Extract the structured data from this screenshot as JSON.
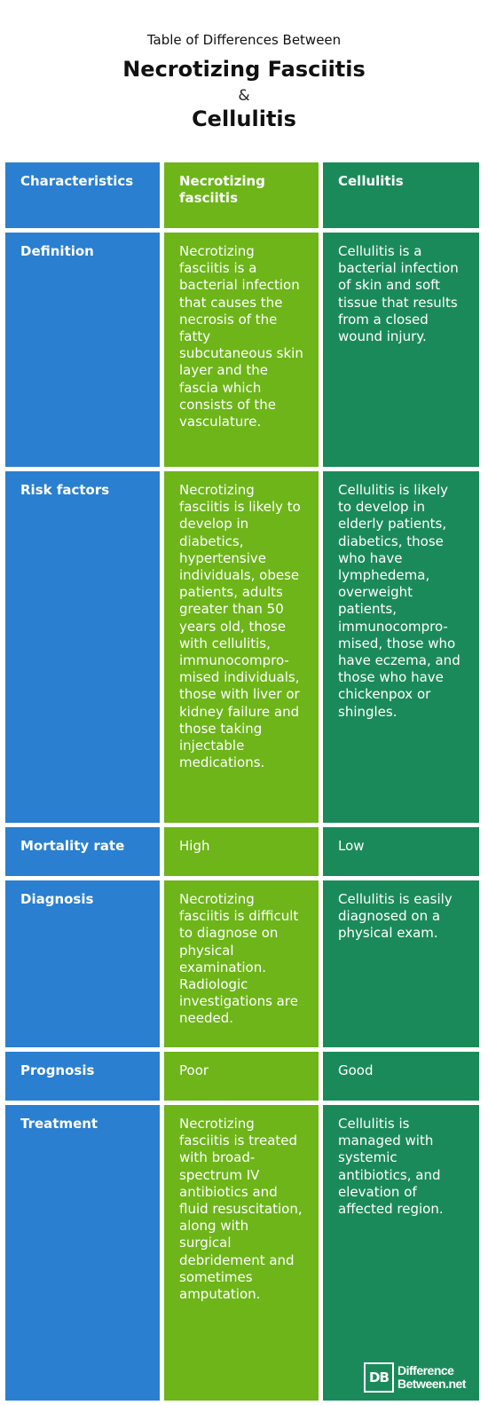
{
  "header": {
    "subtitle": "Table of Differences Between",
    "title1": "Necrotizing Fasciitis",
    "amp": "&",
    "title2": "Cellulitis"
  },
  "table": {
    "columns": [
      "Characteristics",
      "Necrotizing fasciitis",
      "Cellulitis"
    ],
    "rows": [
      {
        "label": "Definition",
        "nf": "Necrotizing fasciitis is a bacterial infection that causes the necrosis of the fatty subcutaneous skin layer and the fascia which consists of the vasculature.",
        "cell": "Cellulitis is a bacterial infection of skin and soft tissue that results from a closed wound injury."
      },
      {
        "label": "Risk factors",
        "nf": "Necrotizing fasciitis is likely to develop in diabetics, hypertensive individuals, obese patients, adults greater than 50 years old, those with cellulitis, immunocompro-mised individuals, those with liver or kidney failure and those taking injectable medications.",
        "cell": "Cellulitis is likely to develop in elderly patients, diabetics, those who have lymphedema, overweight patients, immunocompro-mised, those who have eczema, and those who have chickenpox or shingles."
      },
      {
        "label": "Mortality rate",
        "nf": "High",
        "cell": "Low"
      },
      {
        "label": "Diagnosis",
        "nf": "Necrotizing fasciitis is difficult to diagnose on physical examination. Radiologic investigations are needed.",
        "cell": "Cellulitis is easily diagnosed on a physical exam."
      },
      {
        "label": "Prognosis",
        "nf": "Poor",
        "cell": "Good"
      },
      {
        "label": "Treatment",
        "nf": "Necrotizing fasciitis is treated with broad-spectrum IV antibiotics and fluid resuscitation, along with surgical debridement and sometimes amputation.",
        "cell": "Cellulitis is managed with systemic antibiotics, and elevation of affected region."
      }
    ]
  },
  "logo": {
    "mark": "DB",
    "line1": "Difference",
    "line2": "Between.net"
  },
  "colors": {
    "blue": "#2a7fd0",
    "green": "#6db519",
    "dark_green": "#1b8a5a"
  }
}
